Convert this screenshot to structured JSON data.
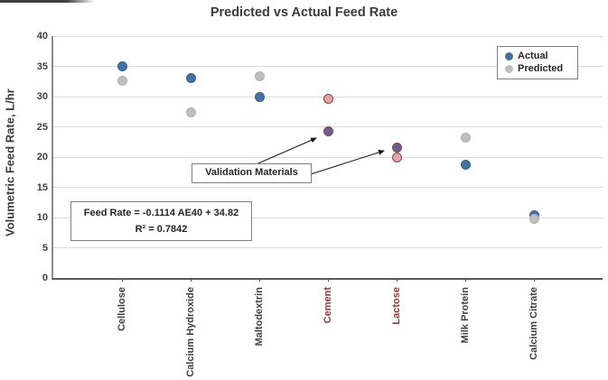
{
  "chart_data": {
    "type": "scatter",
    "title": "Predicted vs Actual Feed Rate",
    "xlabel": "",
    "ylabel": "Volumetric Feed Rate, L/hr",
    "ylim": [
      0,
      40
    ],
    "ytick_step": 5,
    "grid": true,
    "legend_position": "top-right",
    "categories": [
      "Cellulose",
      "Calcium Hydroxide",
      "Maltodextrin",
      "Cement",
      "Lactose",
      "Milk Protein",
      "Calcium Citrate"
    ],
    "validation_categories": [
      "Cement",
      "Lactose"
    ],
    "series": [
      {
        "name": "Actual",
        "color": "#4472a4",
        "edge_color": "#3a5f8a",
        "values": [
          35.0,
          33.0,
          29.9,
          24.2,
          21.6,
          18.8,
          10.4
        ]
      },
      {
        "name": "Predicted",
        "color": "#bfbfbf",
        "edge_color": "#b0b0b0",
        "values": [
          32.6,
          27.4,
          33.4,
          29.7,
          19.9,
          23.2,
          9.8
        ]
      }
    ],
    "validation_style": {
      "actual_fill": "#665f8f",
      "predicted_fill": "#dca7a7",
      "outline": "#8e4444",
      "label_color": "#963634"
    }
  },
  "annotations": {
    "validation_label": "Validation Materials",
    "equation_line1": "Feed Rate = -0.1114 AE40 + 34.82",
    "equation_line2": "R² = 0.7842"
  }
}
